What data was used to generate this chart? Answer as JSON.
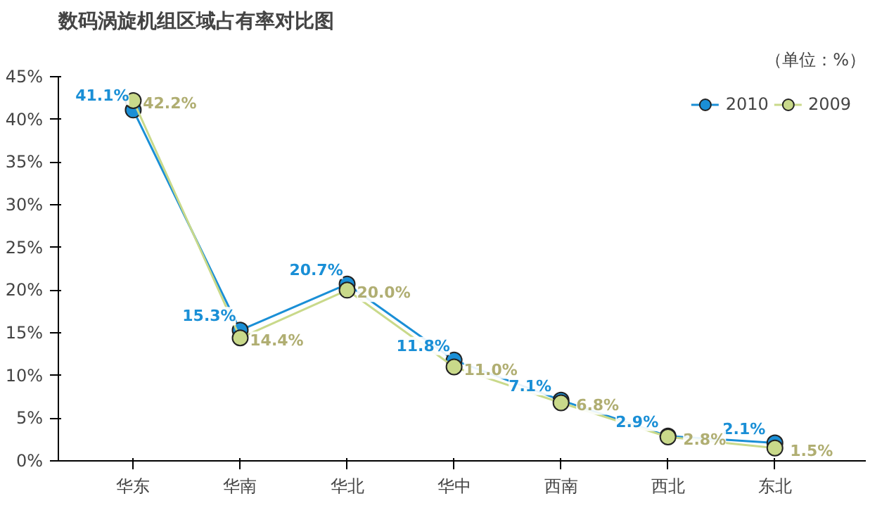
{
  "chart_data": {
    "type": "line",
    "title": "数码涡旋机组区域占有率对比图",
    "annotations": [
      "（单位：%）"
    ],
    "categories": [
      "华东",
      "华南",
      "华北",
      "华中",
      "西南",
      "西北",
      "东北"
    ],
    "series": [
      {
        "name": "2010",
        "color": "#1a8fd6",
        "values": [
          41.1,
          15.3,
          20.7,
          11.8,
          7.1,
          2.9,
          2.1
        ],
        "value_labels": [
          "41.1%",
          "15.3%",
          "20.7%",
          "11.8%",
          "7.1%",
          "2.9%",
          "2.1%"
        ]
      },
      {
        "name": "2009",
        "color": "#c9d98a",
        "values": [
          42.2,
          14.4,
          20.0,
          11.0,
          6.8,
          2.8,
          1.5
        ],
        "value_labels": [
          "42.2%",
          "14.4%",
          "20.0%",
          "11.0%",
          "6.8%",
          "2.8%",
          "1.5%"
        ]
      }
    ],
    "ylim": [
      0,
      45
    ],
    "yticks": [
      {
        "value": 0,
        "label": "0%"
      },
      {
        "value": 5,
        "label": "5%"
      },
      {
        "value": 10,
        "label": "10%"
      },
      {
        "value": 15,
        "label": "15%"
      },
      {
        "value": 20,
        "label": "20%"
      },
      {
        "value": 25,
        "label": "25%"
      },
      {
        "value": 30,
        "label": "30%"
      },
      {
        "value": 35,
        "label": "35%"
      },
      {
        "value": 40,
        "label": "40%"
      },
      {
        "value": 45,
        "label": "45%"
      }
    ],
    "marker": "circle",
    "line_style": "solid",
    "grid": false,
    "legend": "top right"
  }
}
